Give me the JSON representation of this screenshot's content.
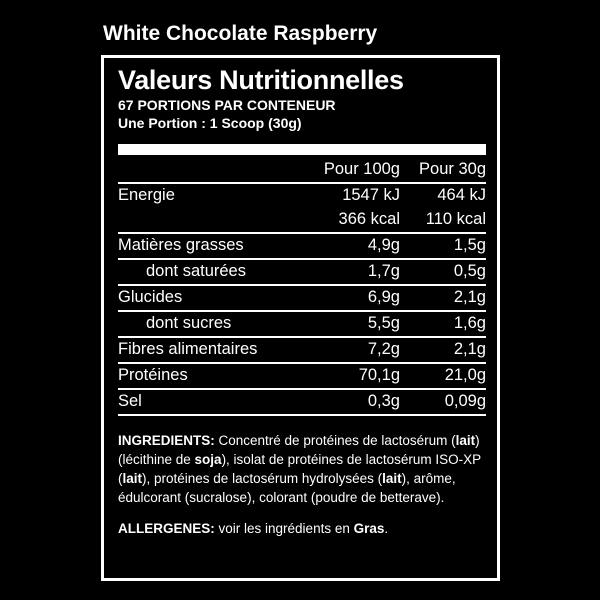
{
  "product_name": "White Chocolate Raspberry",
  "label": {
    "heading": "Valeurs Nutritionnelles",
    "portions": "67 PORTIONS PAR CONTENEUR",
    "serving": "Une Portion : 1 Scoop (30g)",
    "col_100": "Pour 100g",
    "col_30": "Pour 30g",
    "rows": [
      {
        "name": "Energie",
        "v100": "1547 kJ",
        "v30": "464 kJ",
        "v100b": "366 kcal",
        "v30b": "110 kcal"
      },
      {
        "name": "Matières grasses",
        "v100": "4,9g",
        "v30": "1,5g"
      },
      {
        "name": "dont saturées",
        "v100": "1,7g",
        "v30": "0,5g"
      },
      {
        "name": "Glucides",
        "v100": "6,9g",
        "v30": "2,1g"
      },
      {
        "name": "dont sucres",
        "v100": "5,5g",
        "v30": "1,6g"
      },
      {
        "name": "Fibres alimentaires",
        "v100": "7,2g",
        "v30": "2,1g"
      },
      {
        "name": "Protéines",
        "v100": "70,1g",
        "v30": "21,0g"
      },
      {
        "name": "Sel",
        "v100": "0,3g",
        "v30": "0,09g"
      }
    ],
    "ingredients": {
      "label": "INGREDIENTS:",
      "parts": [
        " Concentré de protéines de lactosérum (",
        "lait",
        ") (lécithine de ",
        "soja",
        "), isolat de protéines de lactosérum ISO-XP (",
        "lait",
        "), protéines de lactosérum hydrolysées (",
        "lait",
        "), arôme, édulcorant (sucralose), colorant (poudre de betterave)."
      ]
    },
    "allergens": {
      "label": "ALLERGENES:",
      "text": " voir les ingrédients en ",
      "bold": "Gras",
      "end": "."
    }
  }
}
